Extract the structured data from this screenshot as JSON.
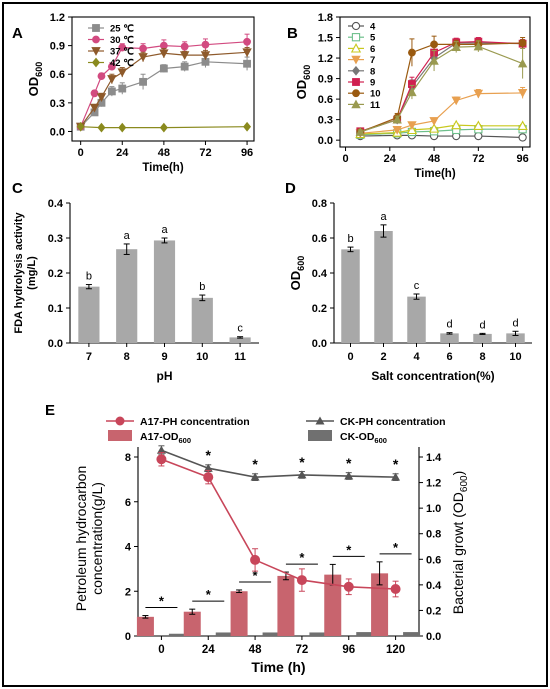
{
  "colors": {
    "frame": "#000000",
    "t25": "#8c8c8c",
    "t30": "#d24a80",
    "t37": "#8e5a2b",
    "t42": "#8a8a1e",
    "ph4": "#555555",
    "ph5": "#6dbf8b",
    "ph6": "#c8c81e",
    "ph7": "#e8a050",
    "ph8": "#777777",
    "ph9": "#d02050",
    "ph10": "#9a5a10",
    "ph11": "#9a9a50",
    "bar_gray": "#a8a8a8",
    "a17_line": "#c8465a",
    "ck_line": "#555555",
    "a17_bar": "#c8646e",
    "ck_bar": "#707070"
  },
  "chart_data": [
    {
      "panel": "A",
      "type": "line",
      "xlabel": "Time(h)",
      "ylabel": "OD600",
      "xlim": [
        -5,
        100
      ],
      "ylim": [
        -0.1,
        1.2
      ],
      "xticks": [
        0,
        24,
        48,
        72,
        96
      ],
      "yticks": [
        0.0,
        0.3,
        0.6,
        0.9,
        1.2
      ],
      "legend": "top-left",
      "series": [
        {
          "name": "25 ℃",
          "color": "#8c8c8c",
          "marker": "square",
          "x": [
            0,
            8,
            12,
            18,
            24,
            36,
            48,
            60,
            72,
            96
          ],
          "y": [
            0.05,
            0.2,
            0.3,
            0.42,
            0.45,
            0.52,
            0.66,
            0.68,
            0.73,
            0.71
          ],
          "err": [
            0.01,
            0.03,
            0.04,
            0.05,
            0.06,
            0.08,
            0.04,
            0.05,
            0.06,
            0.07
          ]
        },
        {
          "name": "30 ℃",
          "color": "#d24a80",
          "marker": "circle",
          "x": [
            0,
            8,
            12,
            18,
            24,
            36,
            48,
            60,
            72,
            96
          ],
          "y": [
            0.05,
            0.4,
            0.58,
            0.68,
            0.88,
            0.87,
            0.9,
            0.89,
            0.91,
            0.94
          ],
          "err": [
            0.01,
            0.03,
            0.03,
            0.04,
            0.04,
            0.05,
            0.06,
            0.05,
            0.06,
            0.08
          ]
        },
        {
          "name": "37 ℃",
          "color": "#8e5a2b",
          "marker": "triangle-down",
          "x": [
            0,
            8,
            12,
            18,
            24,
            36,
            48,
            60,
            72,
            96
          ],
          "y": [
            0.05,
            0.25,
            0.36,
            0.55,
            0.62,
            0.78,
            0.82,
            0.8,
            0.8,
            0.83
          ],
          "err": [
            0.01,
            0.03,
            0.04,
            0.05,
            0.05,
            0.05,
            0.05,
            0.04,
            0.05,
            0.05
          ]
        },
        {
          "name": "42 ℃",
          "color": "#8a8a1e",
          "marker": "diamond",
          "x": [
            0,
            12,
            24,
            48,
            96
          ],
          "y": [
            0.05,
            0.04,
            0.04,
            0.04,
            0.05
          ],
          "err": [
            0.01,
            0.01,
            0.01,
            0.01,
            0.01
          ]
        }
      ]
    },
    {
      "panel": "B",
      "type": "line",
      "xlabel": "Time(h)",
      "ylabel": "OD600",
      "xlim": [
        -3,
        100
      ],
      "ylim": [
        -0.1,
        1.8
      ],
      "xticks": [
        0,
        24,
        48,
        72,
        96
      ],
      "yticks": [
        0.0,
        0.3,
        0.6,
        0.9,
        1.2,
        1.5,
        1.8
      ],
      "legend": "top-left",
      "series": [
        {
          "name": "4",
          "color": "#555555",
          "marker": "circle-open",
          "x": [
            8,
            28,
            36,
            48,
            60,
            72,
            96
          ],
          "y": [
            0.06,
            0.07,
            0.07,
            0.06,
            0.06,
            0.06,
            0.04
          ],
          "err": [
            0.01,
            0.01,
            0.01,
            0.01,
            0.01,
            0.01,
            0.01
          ]
        },
        {
          "name": "5",
          "color": "#6dbf8b",
          "marker": "square-open",
          "x": [
            8,
            28,
            36,
            48,
            60,
            72,
            96
          ],
          "y": [
            0.08,
            0.1,
            0.12,
            0.13,
            0.15,
            0.16,
            0.16
          ],
          "err": [
            0.01,
            0.01,
            0.01,
            0.01,
            0.02,
            0.02,
            0.02
          ]
        },
        {
          "name": "6",
          "color": "#c8c81e",
          "marker": "triangle-open",
          "x": [
            8,
            28,
            36,
            48,
            60,
            72,
            96
          ],
          "y": [
            0.09,
            0.11,
            0.15,
            0.17,
            0.22,
            0.21,
            0.21
          ],
          "err": [
            0.01,
            0.01,
            0.02,
            0.02,
            0.02,
            0.02,
            0.02
          ]
        },
        {
          "name": "7",
          "color": "#e8a050",
          "marker": "triangle-down",
          "x": [
            8,
            28,
            36,
            48,
            60,
            72,
            96
          ],
          "y": [
            0.1,
            0.15,
            0.22,
            0.28,
            0.58,
            0.68,
            0.69
          ],
          "err": [
            0.02,
            0.02,
            0.03,
            0.04,
            0.05,
            0.06,
            0.08
          ]
        },
        {
          "name": "8",
          "color": "#777777",
          "marker": "diamond",
          "x": [
            8,
            28,
            36,
            48,
            60,
            72,
            96
          ],
          "y": [
            0.12,
            0.3,
            0.78,
            1.2,
            1.42,
            1.42,
            1.41
          ],
          "err": [
            0.03,
            0.05,
            0.1,
            0.12,
            0.06,
            0.06,
            0.06
          ]
        },
        {
          "name": "9",
          "color": "#d02050",
          "marker": "square",
          "x": [
            8,
            28,
            36,
            48,
            60,
            72,
            96
          ],
          "y": [
            0.13,
            0.3,
            0.82,
            1.28,
            1.43,
            1.44,
            1.41
          ],
          "err": [
            0.03,
            0.05,
            0.1,
            0.12,
            0.06,
            0.06,
            0.06
          ]
        },
        {
          "name": "10",
          "color": "#9a5a10",
          "marker": "circle",
          "x": [
            8,
            28,
            36,
            48,
            60,
            72,
            96
          ],
          "y": [
            0.12,
            0.33,
            1.28,
            1.4,
            1.4,
            1.4,
            1.42
          ],
          "err": [
            0.03,
            0.06,
            0.2,
            0.12,
            0.06,
            0.06,
            0.08
          ]
        },
        {
          "name": "11",
          "color": "#9a9a50",
          "marker": "triangle",
          "x": [
            8,
            28,
            36,
            48,
            60,
            72,
            96
          ],
          "y": [
            0.12,
            0.3,
            0.7,
            1.16,
            1.36,
            1.37,
            1.12
          ],
          "err": [
            0.03,
            0.05,
            0.1,
            0.15,
            0.08,
            0.08,
            0.22
          ]
        }
      ]
    },
    {
      "panel": "C",
      "type": "bar",
      "xlabel": "pH",
      "ylabel_lines": [
        "FDA hydrolysis activity",
        "(mg/L)"
      ],
      "ylim": [
        0,
        0.4
      ],
      "yticks": [
        0.0,
        0.1,
        0.2,
        0.3,
        0.4
      ],
      "categories": [
        "7",
        "8",
        "9",
        "10",
        "11"
      ],
      "values": [
        0.161,
        0.268,
        0.293,
        0.129,
        0.016
      ],
      "err": [
        0.006,
        0.015,
        0.007,
        0.008,
        0.002
      ],
      "letters": [
        "b",
        "a",
        "a",
        "b",
        "c"
      ]
    },
    {
      "panel": "D",
      "type": "bar",
      "xlabel": "Salt concentration(%)",
      "ylabel": "OD600",
      "ylim": [
        0,
        0.8
      ],
      "yticks": [
        0.0,
        0.2,
        0.4,
        0.6,
        0.8
      ],
      "categories": [
        "0",
        "2",
        "4",
        "6",
        "8",
        "10"
      ],
      "values": [
        0.535,
        0.64,
        0.265,
        0.055,
        0.052,
        0.055
      ],
      "err": [
        0.013,
        0.035,
        0.015,
        0.004,
        0.003,
        0.012
      ],
      "letters": [
        "b",
        "a",
        "c",
        "d",
        "d",
        "d"
      ]
    },
    {
      "panel": "E",
      "type": "bar",
      "xlabel": "Time (h)",
      "ylabel_left_lines": [
        "Petroleum hydrocarbon",
        "concentration(g/L)"
      ],
      "ylabel_right": "Bacterial growt (OD600)",
      "categories": [
        "0",
        "24",
        "48",
        "72",
        "96",
        "120"
      ],
      "ylim_left": [
        0,
        8
      ],
      "yticks_left": [
        0,
        2,
        4,
        6,
        8
      ],
      "ylim_right": [
        0,
        1.4
      ],
      "yticks_right": [
        0.0,
        0.2,
        0.4,
        0.6,
        0.8,
        1.0,
        1.2,
        1.4
      ],
      "legend": "top",
      "series": [
        {
          "name": "A17-PH concentration",
          "kind": "line",
          "color": "#c8465a",
          "marker": "circle",
          "values": [
            7.9,
            7.1,
            3.4,
            2.5,
            2.2,
            2.1
          ],
          "err": [
            0.3,
            0.3,
            0.5,
            0.5,
            0.35,
            0.35
          ]
        },
        {
          "name": "CK-PH concentration",
          "kind": "line",
          "color": "#555555",
          "marker": "triangle",
          "values": [
            8.3,
            7.5,
            7.1,
            7.2,
            7.15,
            7.1
          ],
          "err": [
            0.2,
            0.15,
            0.15,
            0.15,
            0.15,
            0.15
          ]
        },
        {
          "name": "A17-OD600",
          "kind": "bar",
          "color": "#c8646e",
          "values": [
            0.15,
            0.19,
            0.35,
            0.47,
            0.48,
            0.49
          ],
          "err": [
            0.01,
            0.02,
            0.01,
            0.03,
            0.08,
            0.09
          ]
        },
        {
          "name": "CK-OD600",
          "kind": "bar",
          "color": "#707070",
          "values": [
            0.002,
            0.012,
            0.012,
            0.012,
            0.015,
            0.015
          ],
          "err": [
            0.002,
            0.003,
            0.003,
            0.003,
            0.003,
            0.003
          ]
        }
      ],
      "significance_marks": [
        "*",
        "*",
        "*",
        "*",
        "*",
        "*"
      ]
    }
  ],
  "labels": {
    "A": "A",
    "B": "B",
    "C": "C",
    "D": "D",
    "E": "E"
  }
}
